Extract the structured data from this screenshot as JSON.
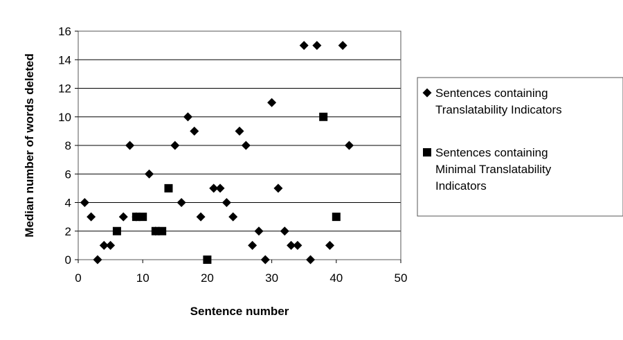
{
  "chart_data": {
    "type": "scatter",
    "xlabel": "Sentence number",
    "ylabel": "Median number of words deleted",
    "xlim": [
      0,
      50
    ],
    "ylim": [
      0,
      16
    ],
    "xticks": [
      0,
      10,
      20,
      30,
      40,
      50
    ],
    "yticks": [
      0,
      2,
      4,
      6,
      8,
      10,
      12,
      14,
      16
    ],
    "grid": "horizontal",
    "legend_position": "right",
    "series": [
      {
        "name_lines": [
          "Sentences containing",
          "Translatability Indicators"
        ],
        "marker": "diamond",
        "color": "#000000",
        "points": [
          [
            1,
            4
          ],
          [
            2,
            3
          ],
          [
            3,
            0
          ],
          [
            4,
            1
          ],
          [
            5,
            1
          ],
          [
            7,
            3
          ],
          [
            8,
            8
          ],
          [
            9,
            3
          ],
          [
            11,
            6
          ],
          [
            12,
            2
          ],
          [
            15,
            8
          ],
          [
            16,
            4
          ],
          [
            17,
            10
          ],
          [
            18,
            9
          ],
          [
            19,
            3
          ],
          [
            21,
            5
          ],
          [
            22,
            5
          ],
          [
            23,
            4
          ],
          [
            24,
            3
          ],
          [
            25,
            9
          ],
          [
            26,
            8
          ],
          [
            27,
            1
          ],
          [
            28,
            2
          ],
          [
            29,
            0
          ],
          [
            30,
            11
          ],
          [
            31,
            5
          ],
          [
            32,
            2
          ],
          [
            33,
            1
          ],
          [
            34,
            1
          ],
          [
            35,
            15
          ],
          [
            36,
            0
          ],
          [
            37,
            15
          ],
          [
            39,
            1
          ],
          [
            41,
            15
          ],
          [
            42,
            8
          ]
        ]
      },
      {
        "name_lines": [
          "Sentences containing",
          "Minimal Translatability",
          "Indicators"
        ],
        "marker": "square",
        "color": "#000000",
        "points": [
          [
            6,
            2
          ],
          [
            9,
            3
          ],
          [
            10,
            3
          ],
          [
            12,
            2
          ],
          [
            13,
            2
          ],
          [
            14,
            5
          ],
          [
            20,
            0
          ],
          [
            38,
            10
          ],
          [
            40,
            3
          ]
        ]
      }
    ]
  }
}
